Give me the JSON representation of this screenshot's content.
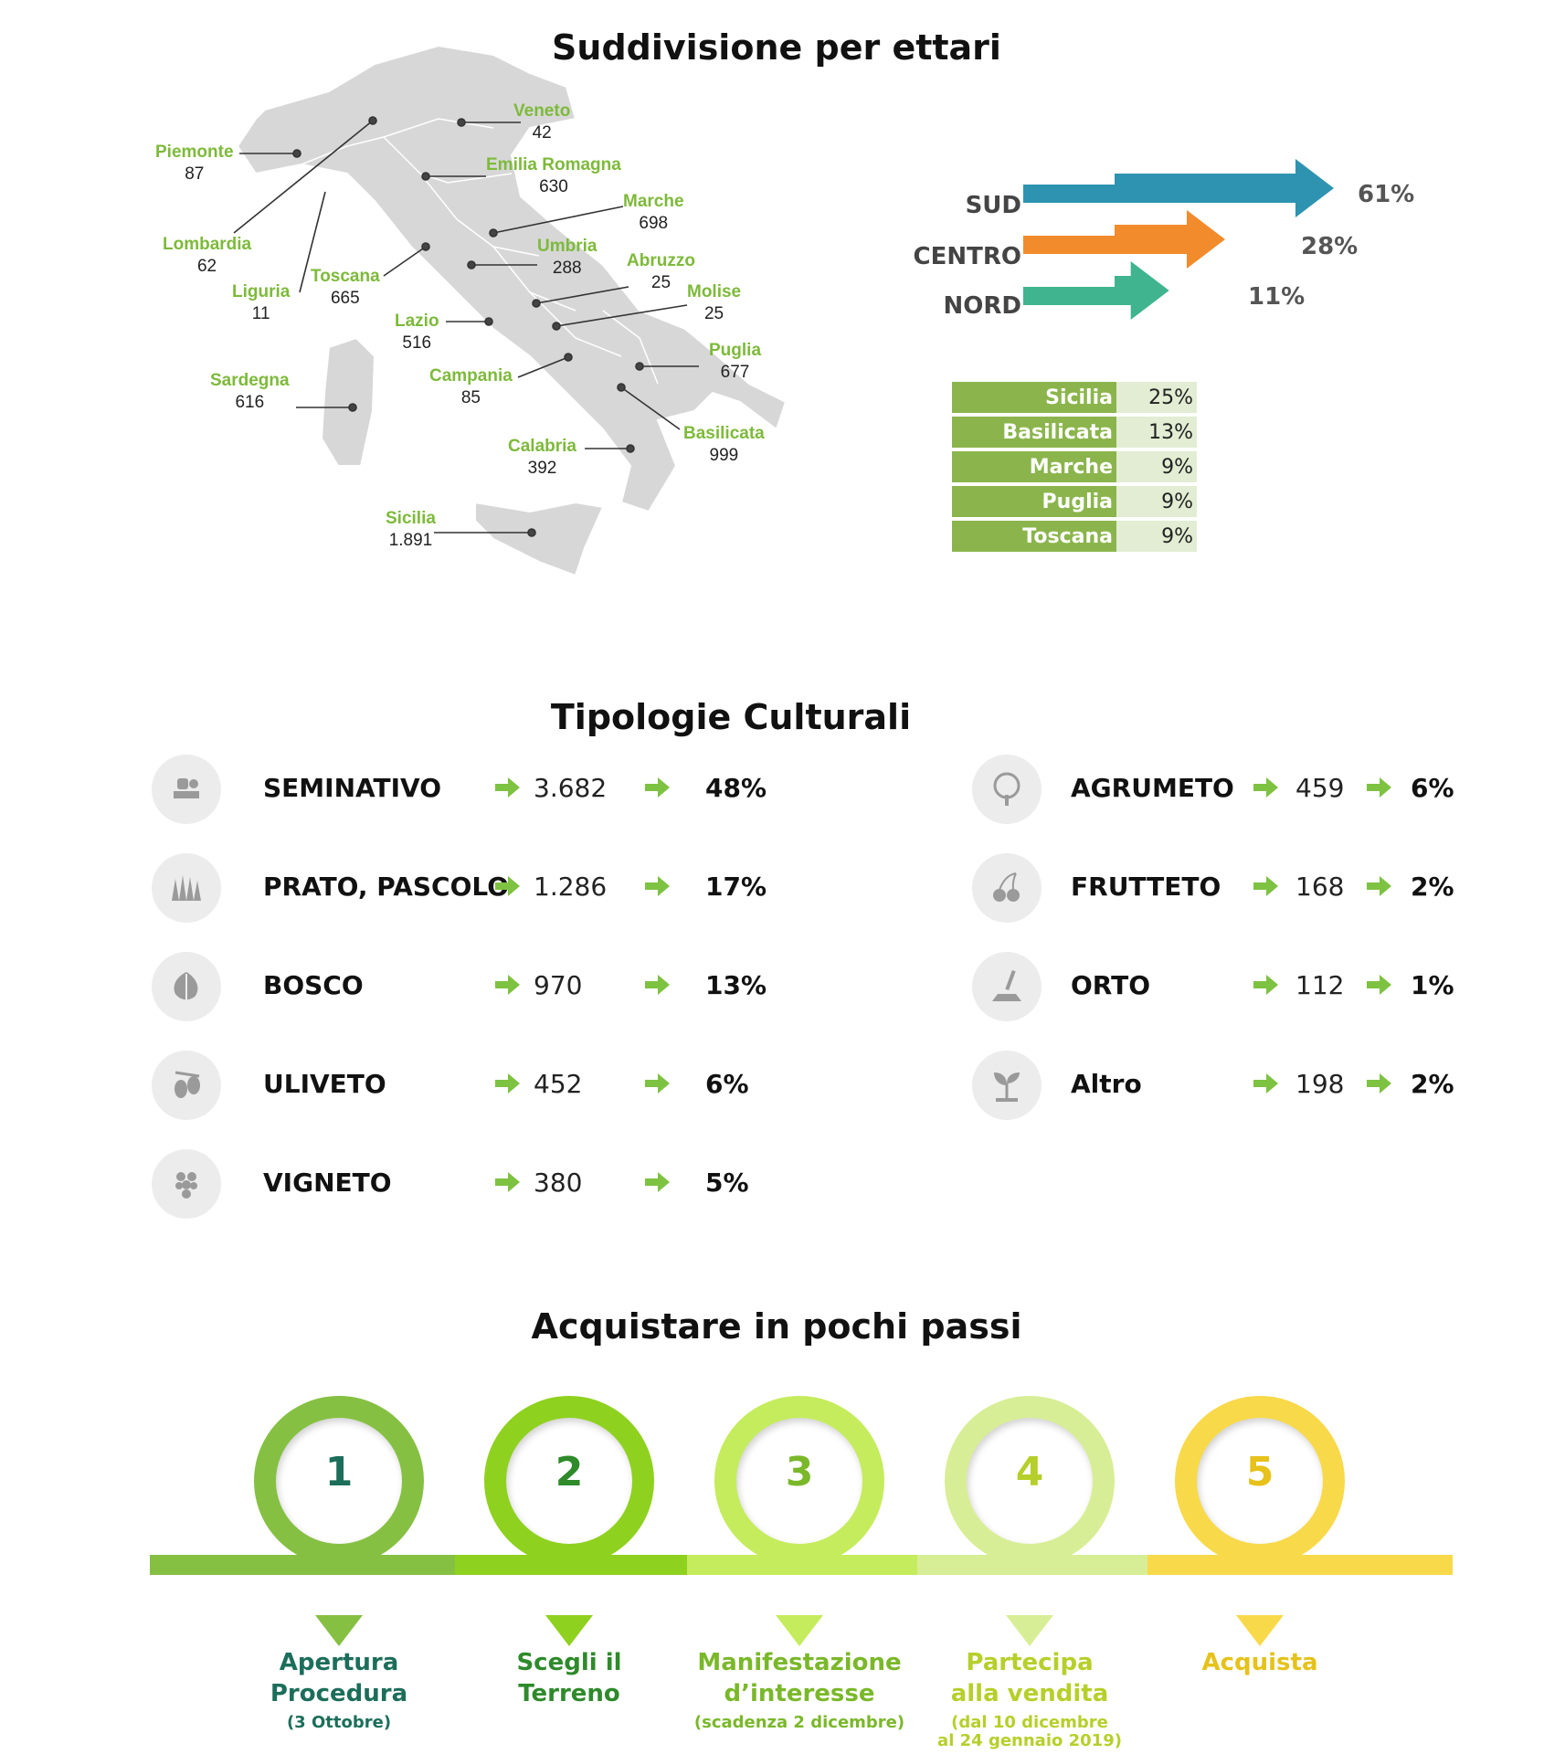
{
  "titles": {
    "hectares": "Suddivisione per ettari",
    "cultures": "Tipologie Culturali",
    "steps": "Acquistare in pochi passi"
  },
  "colors": {
    "green_label": "#7dba3a",
    "sud": "#2e93b0",
    "centro": "#f28b2c",
    "nord": "#3fb48f",
    "table_green": "#8bb54c",
    "arrow_green": "#7ec242"
  },
  "regions": [
    {
      "name": "Piemonte",
      "value": "87"
    },
    {
      "name": "Veneto",
      "value": "42"
    },
    {
      "name": "Emilia Romagna",
      "value": "630"
    },
    {
      "name": "Marche",
      "value": "698"
    },
    {
      "name": "Lombardia",
      "value": "62"
    },
    {
      "name": "Umbria",
      "value": "288"
    },
    {
      "name": "Abruzzo",
      "value": "25"
    },
    {
      "name": "Toscana",
      "value": "665"
    },
    {
      "name": "Liguria",
      "value": "11"
    },
    {
      "name": "Molise",
      "value": "25"
    },
    {
      "name": "Lazio",
      "value": "516"
    },
    {
      "name": "Puglia",
      "value": "677"
    },
    {
      "name": "Sardegna",
      "value": "616"
    },
    {
      "name": "Campania",
      "value": "85"
    },
    {
      "name": "Basilicata",
      "value": "999"
    },
    {
      "name": "Calabria",
      "value": "392"
    },
    {
      "name": "Sicilia",
      "value": "1.891"
    }
  ],
  "chart_data": [
    {
      "type": "bar",
      "categories": [
        "SUD",
        "CENTRO",
        "NORD"
      ],
      "values": [
        61,
        28,
        11
      ],
      "value_labels": [
        "61%",
        "28%",
        "11%"
      ],
      "colors": [
        "#2e93b0",
        "#f28b2c",
        "#3fb48f"
      ]
    },
    {
      "type": "table",
      "rows": [
        {
          "region": "Sicilia",
          "pct": "25%"
        },
        {
          "region": "Basilicata",
          "pct": "13%"
        },
        {
          "region": "Marche",
          "pct": "9%"
        },
        {
          "region": "Puglia",
          "pct": "9%"
        },
        {
          "region": "Toscana",
          "pct": "9%"
        }
      ]
    },
    {
      "type": "table",
      "rows": [
        {
          "name": "SEMINATIVO",
          "hectares": "3.682",
          "pct": "48%",
          "icon": "field-planting-icon"
        },
        {
          "name": "PRATO, PASCOLO",
          "hectares": "1.286",
          "pct": "17%",
          "icon": "grass-icon"
        },
        {
          "name": "BOSCO",
          "hectares": "970",
          "pct": "13%",
          "icon": "leaf-icon"
        },
        {
          "name": "ULIVETO",
          "hectares": "452",
          "pct": "6%",
          "icon": "olive-icon"
        },
        {
          "name": "VIGNETO",
          "hectares": "380",
          "pct": "5%",
          "icon": "grapes-icon"
        },
        {
          "name": "AGRUMETO",
          "hectares": "459",
          "pct": "6%",
          "icon": "tree-icon"
        },
        {
          "name": "FRUTTETO",
          "hectares": "168",
          "pct": "2%",
          "icon": "cherries-icon"
        },
        {
          "name": "ORTO",
          "hectares": "112",
          "pct": "1%",
          "icon": "shovel-icon"
        },
        {
          "name": "Altro",
          "hectares": "198",
          "pct": "2%",
          "icon": "sprout-icon"
        }
      ]
    }
  ],
  "steps": [
    {
      "number": "1",
      "label_1": "Apertura",
      "label_2": "Procedura",
      "note_1": "(3 Ottobre)",
      "note_2": "",
      "color": "#86c043",
      "text_color": "#1c6e5a"
    },
    {
      "number": "2",
      "label_1": "Scegli il",
      "label_2": "Terreno",
      "note_1": "",
      "note_2": "",
      "color": "#8fd11f",
      "text_color": "#2e8a2a"
    },
    {
      "number": "3",
      "label_1": "Manifestazione",
      "label_2": "d’interesse",
      "note_1": "(scadenza 2 dicembre)",
      "note_2": "",
      "color": "#c5ec5c",
      "text_color": "#7ab82a"
    },
    {
      "number": "4",
      "label_1": "Partecipa",
      "label_2": "alla vendita",
      "note_1": "(dal 10 dicembre",
      "note_2": "al 24 gennaio 2019)",
      "color": "#d8ee96",
      "text_color": "#b7cf2a"
    },
    {
      "number": "5",
      "label_1": "Acquista",
      "label_2": "",
      "note_1": "",
      "note_2": "",
      "color": "#f8d94a",
      "text_color": "#e6c21a"
    }
  ]
}
